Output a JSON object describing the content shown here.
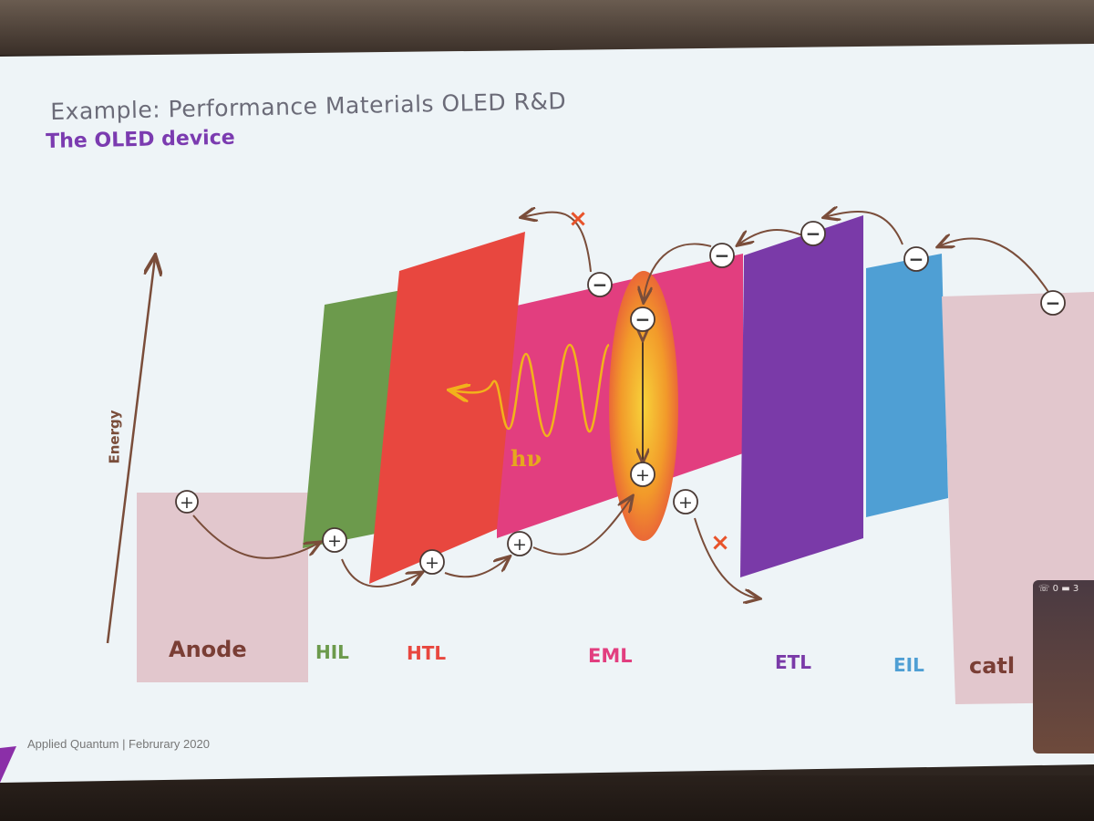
{
  "slide": {
    "title": "Example: Performance Materials OLED R&D",
    "subtitle": "The OLED device",
    "footer": "Applied Quantum | Februrary 2020"
  },
  "diagram": {
    "axis_label": "Energy",
    "photon_label": "hν",
    "hole_symbol": "+",
    "electron_symbol": "−",
    "blocked_symbol": "×",
    "layers": [
      {
        "id": "anode",
        "label": "Anode",
        "color": "#e2c7cd",
        "label_color": "#7a3e35"
      },
      {
        "id": "hil",
        "label": "HIL",
        "color": "#6c9a4c",
        "label_color": "#6c9a4c"
      },
      {
        "id": "htl",
        "label": "HTL",
        "color": "#e8473f",
        "label_color": "#e8473f"
      },
      {
        "id": "eml",
        "label": "EML",
        "color": "#e23e7f",
        "label_color": "#e23e7f"
      },
      {
        "id": "etl",
        "label": "ETL",
        "color": "#7a3aa8",
        "label_color": "#7a3aa8"
      },
      {
        "id": "eil",
        "label": "EIL",
        "color": "#4f9fd4",
        "label_color": "#4f9fd4"
      },
      {
        "id": "cathode",
        "label": "catl",
        "color": "#e2c7cd",
        "label_color": "#7a3e35"
      }
    ],
    "colors": {
      "arrow": "#7a4d3a",
      "cross": "#e8532a",
      "photon": "#f2b21b",
      "background": "#eef4f7"
    }
  },
  "phone": {
    "status": "☏ 0  ▬ 3"
  }
}
